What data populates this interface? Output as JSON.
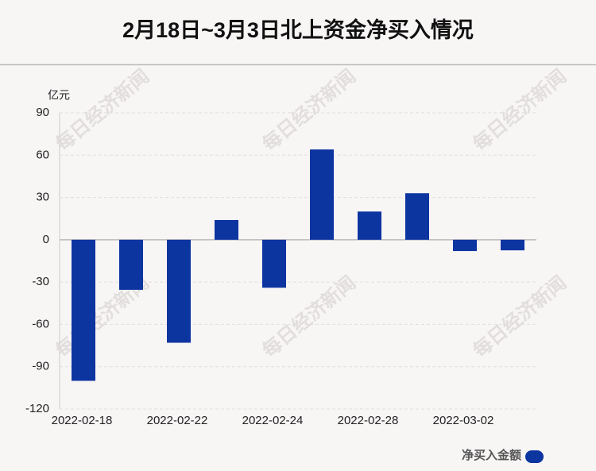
{
  "chart_data": {
    "type": "bar",
    "title": "2月18日~3月3日北上资金净买入情况",
    "y_unit": "亿元",
    "watermark": "每日经济新闻",
    "categories": [
      "2022-02-18",
      null,
      "2022-02-22",
      null,
      "2022-02-24",
      null,
      "2022-02-28",
      null,
      "2022-03-02",
      null
    ],
    "series": [
      {
        "name": "净买入金额",
        "color": "#0d35a0",
        "values": [
          -100,
          -35.5,
          -73,
          14,
          -34,
          64,
          20,
          33,
          -8,
          -7.5
        ]
      }
    ],
    "ylim": [
      -120,
      90
    ],
    "yticks": [
      -120,
      -90,
      -60,
      -30,
      0,
      30,
      60,
      90
    ],
    "grid": true
  }
}
